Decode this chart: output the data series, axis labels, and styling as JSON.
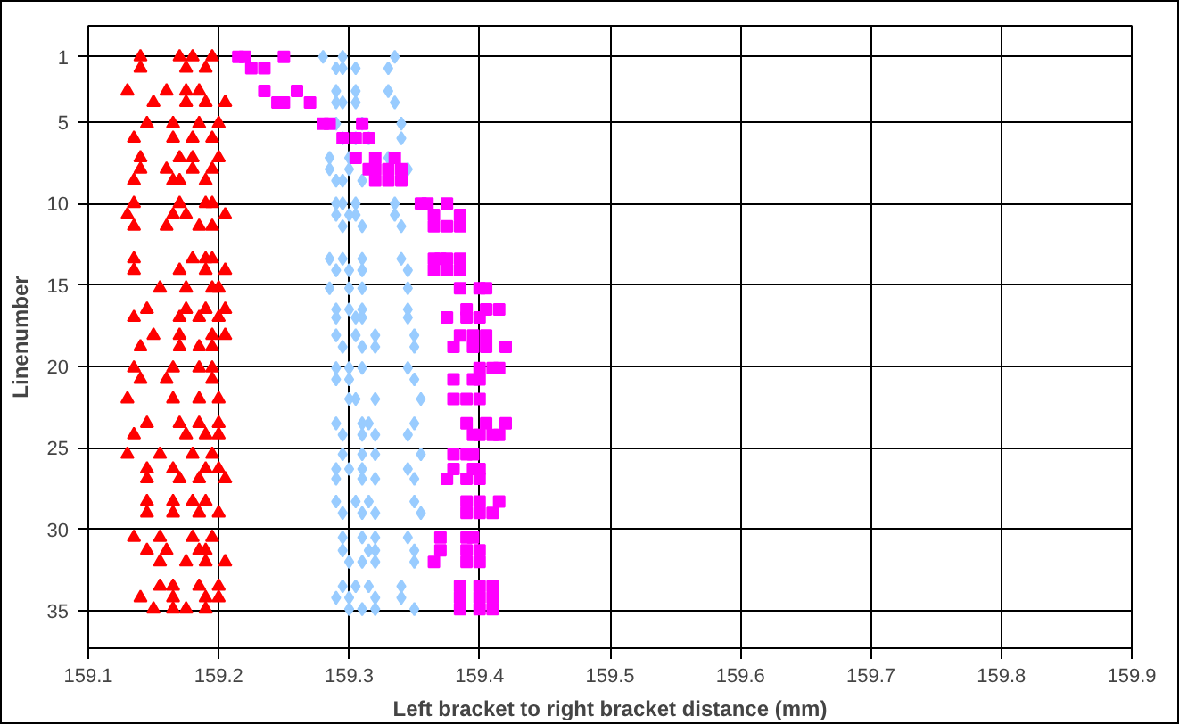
{
  "chart_data": {
    "type": "scatter",
    "xlabel": "Left bracket to right bracket distance (mm)",
    "ylabel": "Linenumber",
    "xlim": [
      159.1,
      159.9
    ],
    "xticks": [
      159.1,
      159.2,
      159.3,
      159.4,
      159.5,
      159.6,
      159.7,
      159.8,
      159.9
    ],
    "ylim": [
      37.3,
      -0.9
    ],
    "yticks": [
      1,
      5,
      10,
      15,
      20,
      25,
      30,
      35
    ],
    "grid": true,
    "series": [
      {
        "color": "#ff0000",
        "marker": "triangle",
        "x": [
          159.14,
          159.17,
          159.18,
          159.195,
          159.14,
          159.175,
          159.19,
          159.13,
          159.16,
          159.175,
          159.185,
          159.15,
          159.175,
          159.19,
          159.205,
          159.145,
          159.165,
          159.185,
          159.2,
          159.135,
          159.165,
          159.18,
          159.195,
          159.14,
          159.17,
          159.18,
          159.2,
          159.14,
          159.16,
          159.18,
          159.195,
          159.135,
          159.165,
          159.17,
          159.19,
          159.135,
          159.17,
          159.19,
          159.195,
          159.13,
          159.165,
          159.175,
          159.205,
          159.135,
          159.16,
          159.185,
          159.195,
          159.135,
          159.18,
          159.19,
          159.195,
          159.135,
          159.17,
          159.19,
          159.205,
          159.155,
          159.175,
          159.195,
          159.2,
          159.145,
          159.175,
          159.19,
          159.205,
          159.135,
          159.17,
          159.185,
          159.2,
          159.15,
          159.17,
          159.195,
          159.205,
          159.14,
          159.17,
          159.185,
          159.195,
          159.135,
          159.165,
          159.185,
          159.195,
          159.14,
          159.16,
          159.195,
          159.13,
          159.165,
          159.185,
          159.2,
          159.145,
          159.17,
          159.185,
          159.2,
          159.135,
          159.175,
          159.19,
          159.2,
          159.13,
          159.155,
          159.18,
          159.195,
          159.145,
          159.165,
          159.19,
          159.2,
          159.145,
          159.17,
          159.185,
          159.205,
          159.145,
          159.165,
          159.18,
          159.19,
          159.145,
          159.165,
          159.185,
          159.2,
          159.135,
          159.155,
          159.18,
          159.195,
          159.145,
          159.16,
          159.185,
          159.19,
          159.155,
          159.175,
          159.19,
          159.205,
          159.155,
          159.165,
          159.185,
          159.2,
          159.14,
          159.165,
          159.19,
          159.2,
          159.15,
          159.165,
          159.175,
          159.19
        ],
        "values": [
          1,
          1,
          1,
          1,
          1.7,
          1.7,
          1.7,
          3.1,
          3.1,
          3.1,
          3.1,
          3.8,
          3.8,
          3.8,
          3.8,
          5.1,
          5.1,
          5.1,
          5.1,
          6,
          6,
          6,
          6,
          7.2,
          7.2,
          7.2,
          7.2,
          7.9,
          7.9,
          7.9,
          7.9,
          8.6,
          8.6,
          8.6,
          8.6,
          10,
          10,
          10,
          10,
          10.7,
          10.7,
          10.7,
          10.7,
          11.4,
          11.4,
          11.4,
          11.4,
          13.4,
          13.4,
          13.4,
          13.4,
          14.1,
          14.1,
          14.1,
          14.1,
          15.2,
          15.2,
          15.2,
          15.2,
          16.5,
          16.5,
          16.5,
          16.5,
          17,
          17,
          17,
          17,
          18.1,
          18.1,
          18.1,
          18.1,
          18.8,
          18.8,
          18.8,
          18.8,
          20.1,
          20.1,
          20.1,
          20.1,
          20.8,
          20.8,
          20.8,
          22,
          22,
          22,
          22,
          23.5,
          23.5,
          23.5,
          23.5,
          24.2,
          24.2,
          24.2,
          24.2,
          25.4,
          25.4,
          25.4,
          25.4,
          26.3,
          26.3,
          26.3,
          26.3,
          26.9,
          26.9,
          26.9,
          26.9,
          28.3,
          28.3,
          28.3,
          28.3,
          29,
          29,
          29,
          29,
          30.5,
          30.5,
          30.5,
          30.5,
          31.3,
          31.3,
          31.3,
          31.3,
          32,
          32,
          32,
          32,
          33.5,
          33.5,
          33.5,
          33.5,
          34.2,
          34.2,
          34.2,
          34.2,
          34.9,
          34.9,
          34.9,
          34.9
        ]
      },
      {
        "color": "#99ccff",
        "marker": "diamond",
        "x": [
          159.28,
          159.295,
          159.335,
          159.29,
          159.295,
          159.305,
          159.33,
          159.29,
          159.305,
          159.33,
          159.29,
          159.295,
          159.305,
          159.335,
          159.29,
          159.31,
          159.34,
          159.295,
          159.305,
          159.315,
          159.34,
          159.285,
          159.3,
          159.33,
          159.285,
          159.3,
          159.345,
          159.29,
          159.295,
          159.31,
          159.29,
          159.295,
          159.305,
          159.335,
          159.29,
          159.3,
          159.305,
          159.335,
          159.295,
          159.31,
          159.34,
          159.285,
          159.295,
          159.31,
          159.34,
          159.29,
          159.3,
          159.31,
          159.345,
          159.285,
          159.3,
          159.31,
          159.345,
          159.29,
          159.3,
          159.31,
          159.345,
          159.29,
          159.305,
          159.31,
          159.345,
          159.29,
          159.305,
          159.32,
          159.35,
          159.295,
          159.31,
          159.32,
          159.35,
          159.29,
          159.3,
          159.31,
          159.345,
          159.29,
          159.3,
          159.35,
          159.3,
          159.305,
          159.32,
          159.355,
          159.29,
          159.31,
          159.315,
          159.35,
          159.295,
          159.31,
          159.32,
          159.345,
          159.295,
          159.31,
          159.32,
          159.355,
          159.29,
          159.3,
          159.31,
          159.345,
          159.29,
          159.31,
          159.32,
          159.35,
          159.29,
          159.305,
          159.315,
          159.35,
          159.295,
          159.31,
          159.32,
          159.355,
          159.295,
          159.31,
          159.32,
          159.345,
          159.295,
          159.315,
          159.32,
          159.35,
          159.3,
          159.31,
          159.32,
          159.35,
          159.295,
          159.305,
          159.315,
          159.34,
          159.29,
          159.3,
          159.32,
          159.34,
          159.3,
          159.31,
          159.32,
          159.35
        ],
        "values": [
          1,
          1,
          1,
          1.7,
          1.7,
          1.7,
          1.7,
          3.1,
          3.1,
          3.1,
          3.8,
          3.8,
          3.8,
          3.8,
          5.1,
          5.1,
          5.1,
          6,
          6,
          6,
          6,
          7.2,
          7.2,
          7.2,
          7.9,
          7.9,
          7.9,
          8.6,
          8.6,
          8.6,
          10,
          10,
          10,
          10,
          10.7,
          10.7,
          10.7,
          10.7,
          11.4,
          11.4,
          11.4,
          13.4,
          13.4,
          13.4,
          13.4,
          14.1,
          14.1,
          14.1,
          14.1,
          15.2,
          15.2,
          15.2,
          15.2,
          16.5,
          16.5,
          16.5,
          16.5,
          17,
          17,
          17,
          17,
          18.1,
          18.1,
          18.1,
          18.1,
          18.8,
          18.8,
          18.8,
          18.8,
          20.1,
          20.1,
          20.1,
          20.1,
          20.8,
          20.8,
          20.8,
          22,
          22,
          22,
          22,
          23.5,
          23.5,
          23.5,
          23.5,
          24.2,
          24.2,
          24.2,
          24.2,
          25.4,
          25.4,
          25.4,
          25.4,
          26.3,
          26.3,
          26.3,
          26.3,
          26.9,
          26.9,
          26.9,
          26.9,
          28.3,
          28.3,
          28.3,
          28.3,
          29,
          29,
          29,
          29,
          30.5,
          30.5,
          30.5,
          30.5,
          31.3,
          31.3,
          31.3,
          31.3,
          32,
          32,
          32,
          32,
          33.5,
          33.5,
          33.5,
          33.5,
          34.2,
          34.2,
          34.2,
          34.2,
          34.9,
          34.9,
          34.9,
          34.9
        ]
      },
      {
        "color": "#ff00ff",
        "marker": "square",
        "x": [
          159.215,
          159.22,
          159.25,
          159.225,
          159.235,
          159.235,
          159.26,
          159.245,
          159.25,
          159.27,
          159.28,
          159.285,
          159.31,
          159.295,
          159.305,
          159.315,
          159.305,
          159.32,
          159.335,
          159.315,
          159.32,
          159.33,
          159.34,
          159.32,
          159.33,
          159.34,
          159.355,
          159.36,
          159.375,
          159.365,
          159.385,
          159.365,
          159.375,
          159.385,
          159.365,
          159.37,
          159.375,
          159.385,
          159.365,
          159.375,
          159.385,
          159.385,
          159.4,
          159.405,
          159.39,
          159.405,
          159.415,
          159.375,
          159.39,
          159.4,
          159.385,
          159.395,
          159.405,
          159.38,
          159.395,
          159.405,
          159.42,
          159.4,
          159.41,
          159.415,
          159.38,
          159.395,
          159.4,
          159.38,
          159.39,
          159.4,
          159.39,
          159.405,
          159.42,
          159.395,
          159.4,
          159.41,
          159.415,
          159.38,
          159.39,
          159.395,
          159.38,
          159.395,
          159.4,
          159.375,
          159.39,
          159.4,
          159.39,
          159.4,
          159.415,
          159.39,
          159.4,
          159.41,
          159.37,
          159.39,
          159.395,
          159.37,
          159.39,
          159.4,
          159.365,
          159.39,
          159.4,
          159.385,
          159.4,
          159.41,
          159.385,
          159.4,
          159.41,
          159.385,
          159.4,
          159.41
        ],
        "values": [
          1,
          1,
          1,
          1.7,
          1.7,
          3.1,
          3.1,
          3.8,
          3.8,
          3.8,
          5.1,
          5.1,
          5.1,
          6,
          6,
          6,
          7.2,
          7.2,
          7.2,
          7.9,
          7.9,
          7.9,
          7.9,
          8.6,
          8.6,
          8.6,
          10,
          10,
          10,
          10.7,
          10.7,
          11.4,
          11.4,
          11.4,
          13.4,
          13.4,
          13.4,
          13.4,
          14.1,
          14.1,
          14.1,
          15.2,
          15.2,
          15.2,
          16.5,
          16.5,
          16.5,
          17,
          17,
          17,
          18.1,
          18.1,
          18.1,
          18.8,
          18.8,
          18.8,
          18.8,
          20.1,
          20.1,
          20.1,
          20.8,
          20.8,
          20.8,
          22,
          22,
          22,
          23.5,
          23.5,
          23.5,
          24.2,
          24.2,
          24.2,
          24.2,
          25.4,
          25.4,
          25.4,
          26.3,
          26.3,
          26.3,
          26.9,
          26.9,
          26.9,
          28.3,
          28.3,
          28.3,
          29,
          29,
          29,
          30.5,
          30.5,
          30.5,
          31.3,
          31.3,
          31.3,
          32,
          32,
          32,
          33.5,
          33.5,
          33.5,
          34.2,
          34.2,
          34.2,
          34.9,
          34.9,
          34.9
        ]
      }
    ]
  }
}
